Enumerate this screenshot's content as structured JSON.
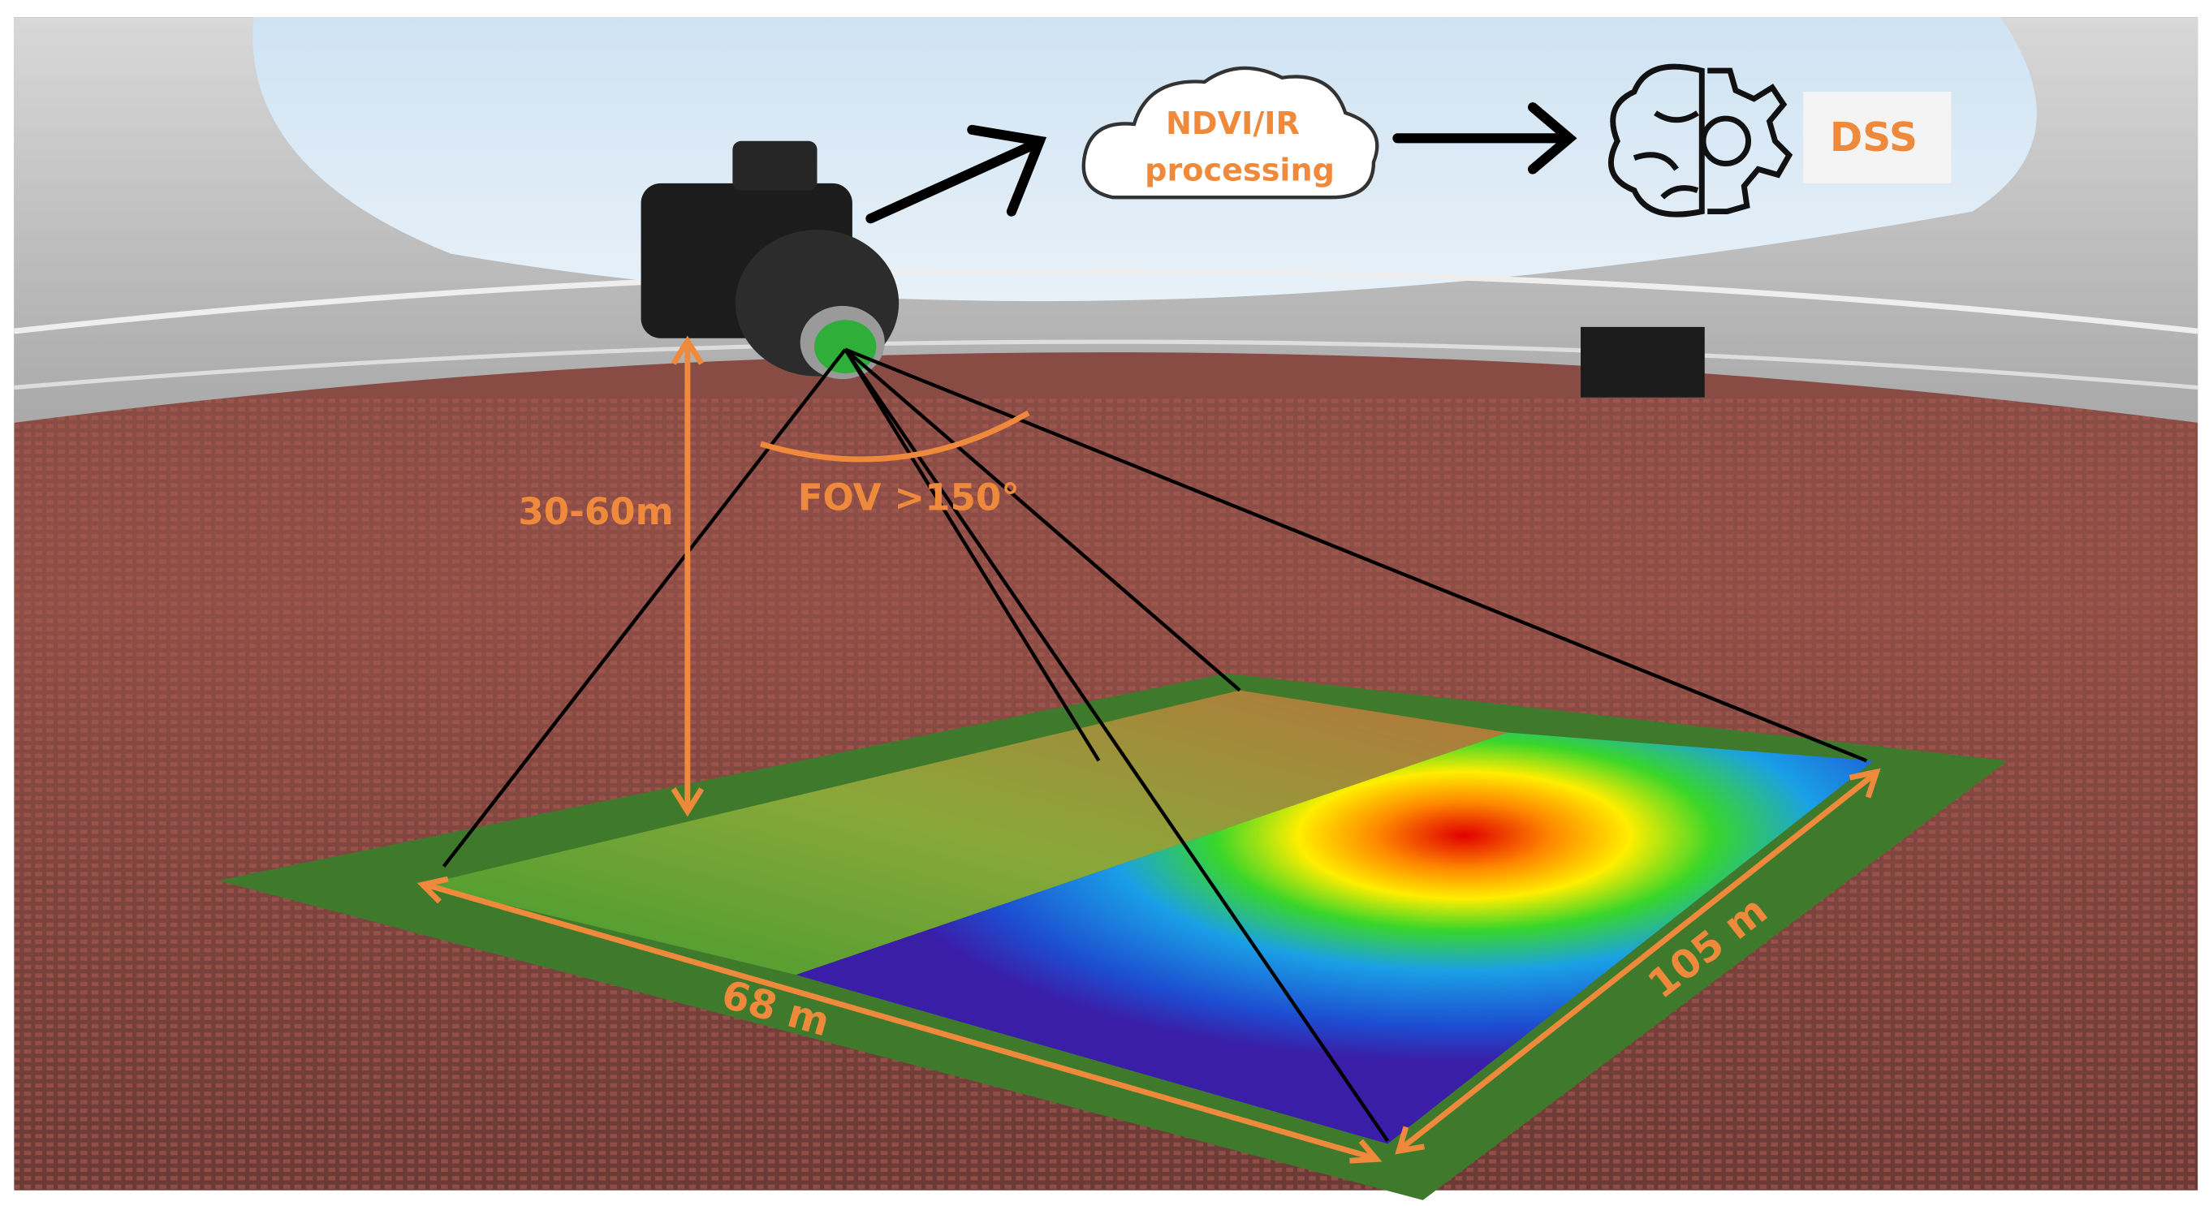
{
  "labels": {
    "cloud": [
      "NDVI/IR",
      "processing"
    ],
    "dss": "DSS",
    "height": "30-60m",
    "fov": "FOV >150°",
    "width": "68 m",
    "length": "105 m"
  }
}
